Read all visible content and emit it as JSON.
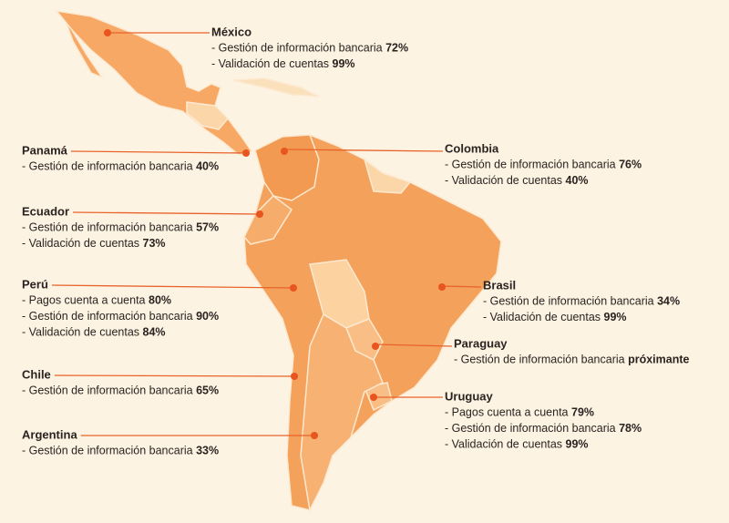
{
  "regions": [
    {
      "name": "México",
      "items": [
        {
          "text": "- Gestión de información bancaria",
          "value": "72%"
        },
        {
          "text": "- Validación de cuentas",
          "value": "99%"
        }
      ]
    },
    {
      "name": "Panamá",
      "items": [
        {
          "text": "- Gestión de información bancaria",
          "value": "40%"
        }
      ]
    },
    {
      "name": "Colombia",
      "items": [
        {
          "text": "- Gestión de información bancaria",
          "value": "76%"
        },
        {
          "text": "- Validación de cuentas",
          "value": "40%"
        }
      ]
    },
    {
      "name": "Ecuador",
      "items": [
        {
          "text": "- Gestión de información bancaria",
          "value": "57%"
        },
        {
          "text": "- Validación de cuentas",
          "value": "73%"
        }
      ]
    },
    {
      "name": "Perú",
      "items": [
        {
          "text": "- Pagos cuenta a cuenta",
          "value": "80%"
        },
        {
          "text": "- Gestión de información bancaria",
          "value": "90%"
        },
        {
          "text": "- Validación de cuentas",
          "value": "84%"
        }
      ]
    },
    {
      "name": "Brasil",
      "items": [
        {
          "text": "- Gestión de información bancaria",
          "value": "34%"
        },
        {
          "text": "- Validación de cuentas",
          "value": "99%"
        }
      ]
    },
    {
      "name": "Paraguay",
      "items": [
        {
          "text": "- Gestión de información bancaria",
          "value": "próximante"
        }
      ]
    },
    {
      "name": "Chile",
      "items": [
        {
          "text": "- Gestión de información bancaria",
          "value": "65%"
        }
      ]
    },
    {
      "name": "Uruguay",
      "items": [
        {
          "text": "- Pagos cuenta a cuenta",
          "value": "79%"
        },
        {
          "text": "- Gestión de información bancaria",
          "value": "78%"
        },
        {
          "text": "- Validación de cuentas",
          "value": "99%"
        }
      ]
    },
    {
      "name": "Argentina",
      "items": [
        {
          "text": "- Gestión de información bancaria",
          "value": "33%"
        }
      ]
    }
  ]
}
